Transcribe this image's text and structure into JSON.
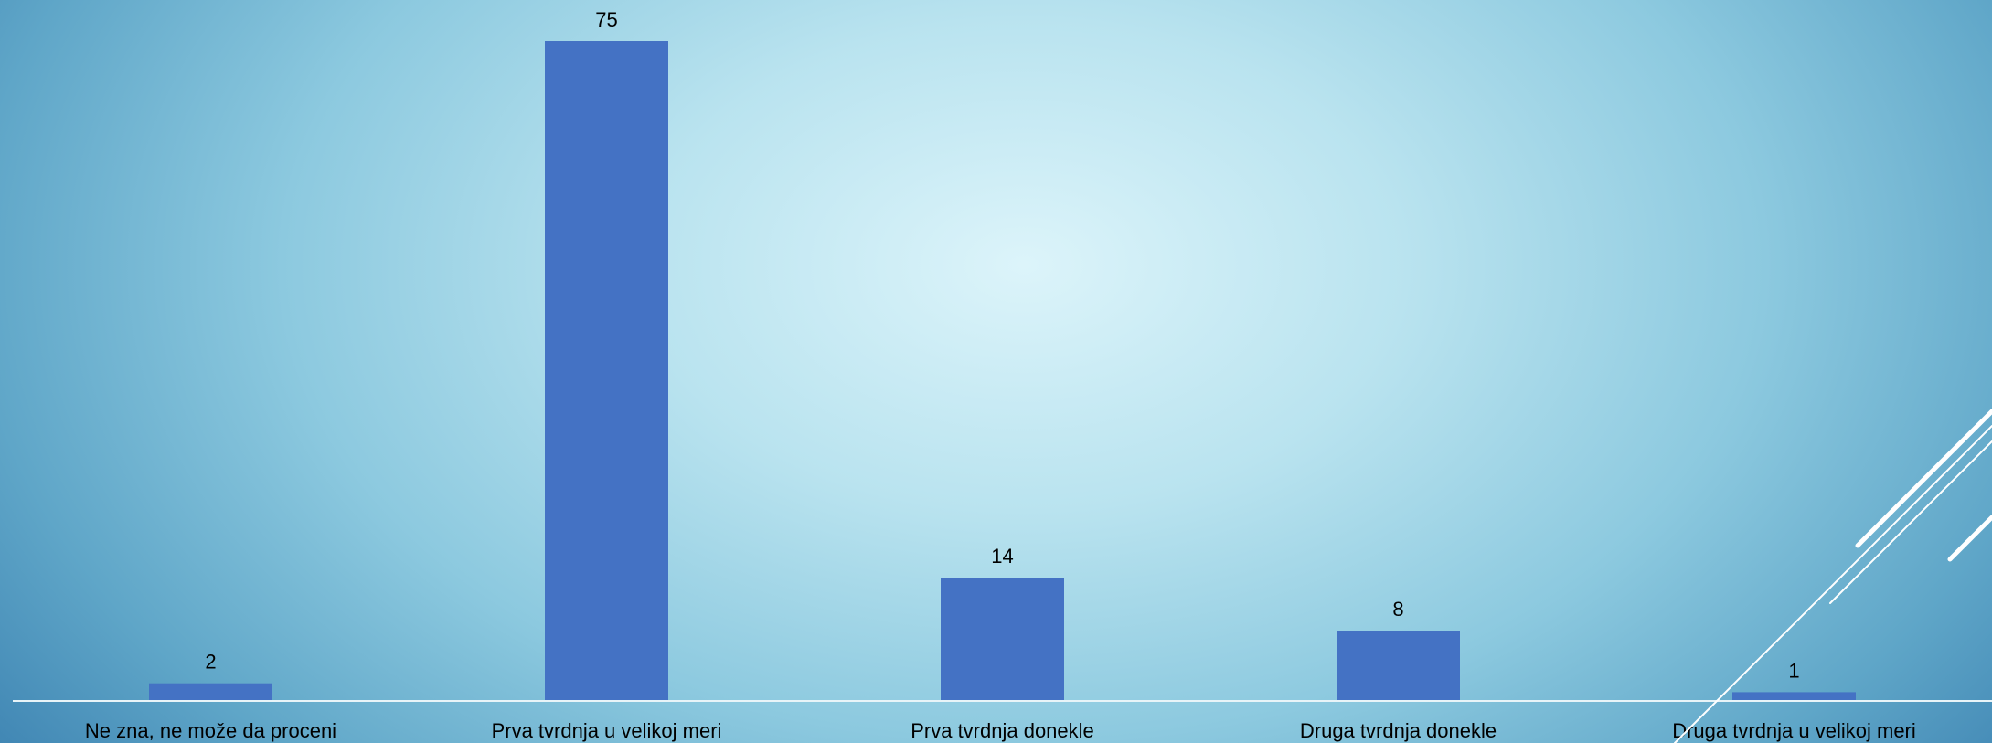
{
  "chart_data": {
    "type": "bar",
    "categories": [
      "Ne zna, ne može da proceni",
      "Prva tvrdnja u velikoj meri",
      "Prva tvrdnja donekle",
      "Druga tvrdnja donekle",
      "Druga tvrdnja u velikoj meri"
    ],
    "values": [
      2,
      75,
      14,
      8,
      1
    ],
    "data_labels": [
      "2",
      "75",
      "14",
      "8",
      "1"
    ],
    "title": "",
    "xlabel": "",
    "ylabel": "",
    "ylim": [
      0,
      75
    ],
    "grid": false,
    "legend": "none",
    "bar_color": "#4472c4"
  },
  "theme": {
    "background_center": "#dcf4fa",
    "background_edge": "#3f85b3",
    "axis_color": "#e8f4f8"
  }
}
